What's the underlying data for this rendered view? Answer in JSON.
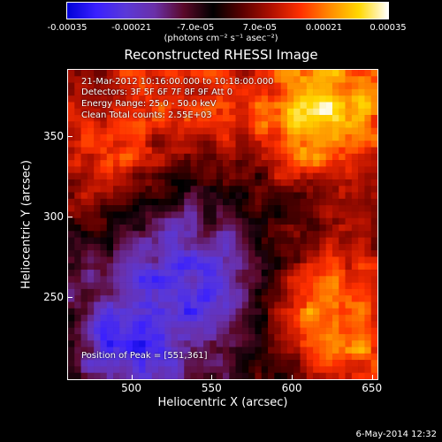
{
  "colorbar": {
    "ticks": [
      "-0.00035",
      "-0.00021",
      "-7.0e-05",
      "7.0e-05",
      "0.00021",
      "0.00035"
    ],
    "tick_values": [
      -0.00035,
      -0.00021,
      -7e-05,
      7e-05,
      0.00021,
      0.00035
    ],
    "range": [
      -0.00035,
      0.00035
    ],
    "units": "(photons cm⁻² s⁻¹ asec⁻²)",
    "colors": [
      "#0000d8",
      "#3a20ff",
      "#5a38d8",
      "#6a30a8",
      "#5a0828",
      "#000000",
      "#5a0000",
      "#b01000",
      "#ff3000",
      "#ff8a00",
      "#ffd800",
      "#ffffff"
    ]
  },
  "chart_data": {
    "type": "heatmap",
    "title": "Reconstructed RHESSI Image",
    "xlabel": "Heliocentric X (arcsec)",
    "ylabel": "Heliocentric Y (arcsec)",
    "xlim": [
      460,
      654
    ],
    "ylim": [
      198,
      392
    ],
    "xticks": [
      "500",
      "550",
      "600",
      "650"
    ],
    "xtick_values": [
      500,
      550,
      600,
      650
    ],
    "yticks": [
      "350",
      "300",
      "250"
    ],
    "ytick_values": [
      350,
      300,
      250
    ],
    "grid_size": [
      48,
      48
    ],
    "peak_position": [
      551,
      361
    ],
    "total_counts": "2.55E+03",
    "annotations": {
      "line1": "21-Mar-2012 10:16:00.000 to 10:18:00.000",
      "line2": "Detectors: 3F 5F 6F 7F 8F 9F  Att 0",
      "line3": "Energy Range: 25.0 - 50.0 keV",
      "line4": "Clean     Total counts: 2.55E+03",
      "peak": "Position of Peak = [551,361]"
    }
  },
  "footer": {
    "timestamp": "6-May-2014 12:32"
  }
}
